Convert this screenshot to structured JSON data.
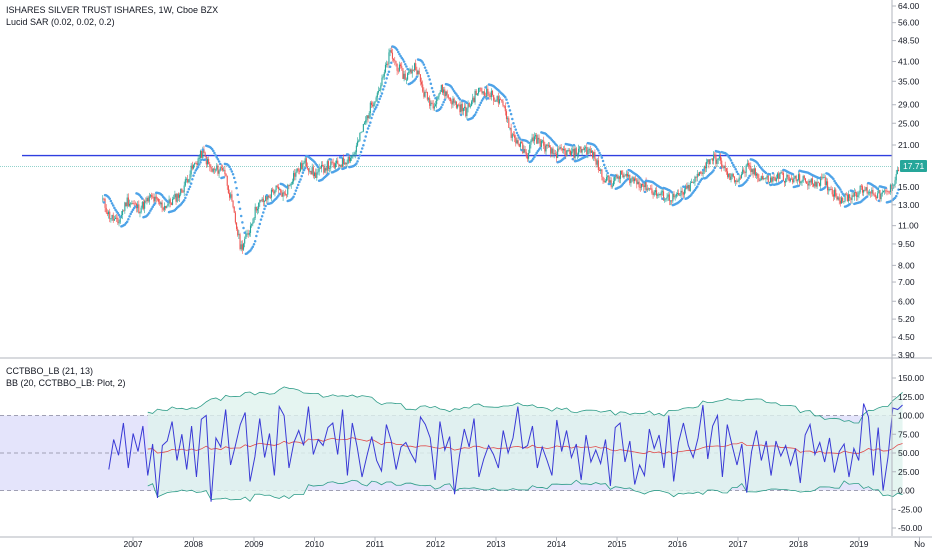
{
  "main_pane": {
    "title": "ISHARES SILVER TRUST ISHARES, 1W, Cboe BZX",
    "indicator": "Lucid SAR (0.02, 0.02, 0.2)",
    "last_price": "17.71"
  },
  "osc_pane": {
    "indicator1": "CCTBBO_LB (21, 13)",
    "indicator2": "BB (20, CCTBBO_LB: Plot, 2)"
  },
  "colors": {
    "up": "#26a69a",
    "down": "#ef5350",
    "sar": "#4ea3e8",
    "hline": "#2f3fe0",
    "last": "#26a69a",
    "osc": "#3a3ad6",
    "basis": "#e04b4b",
    "band": "#2e9c88",
    "band_fill": "#dff3ee",
    "zone_fill": "#e4e4fb",
    "dashed": "#a0a0b4"
  },
  "chart_data": [
    {
      "type": "candlestick",
      "title": "ISHARES SILVER TRUST ISHARES, 1W, Cboe BZX",
      "scale": "log",
      "y_ticks": [
        "64.00",
        "56.00",
        "48.50",
        "41.00",
        "35.00",
        "29.00",
        "25.00",
        "21.00",
        "17.71",
        "15.00",
        "13.00",
        "11.00",
        "9.50",
        "8.00",
        "7.00",
        "6.00",
        "5.20",
        "4.50",
        "3.90"
      ],
      "x_ticks": [
        "2007",
        "2008",
        "2009",
        "2010",
        "2011",
        "2012",
        "2013",
        "2014",
        "2015",
        "2016",
        "2017",
        "2018",
        "2019",
        "No"
      ],
      "horizontal_line": 19.3,
      "last_price": 17.71,
      "anchors": [
        [
          2006.5,
          13.5
        ],
        [
          2006.6,
          12.0
        ],
        [
          2006.75,
          11.2
        ],
        [
          2006.9,
          13.5
        ],
        [
          2007.1,
          12.6
        ],
        [
          2007.3,
          13.8
        ],
        [
          2007.5,
          12.8
        ],
        [
          2007.65,
          13.4
        ],
        [
          2007.8,
          14.5
        ],
        [
          2007.95,
          17.0
        ],
        [
          2008.15,
          19.8
        ],
        [
          2008.3,
          17.0
        ],
        [
          2008.5,
          17.5
        ],
        [
          2008.62,
          13.5
        ],
        [
          2008.78,
          9.2
        ],
        [
          2008.9,
          10.3
        ],
        [
          2009.05,
          13.0
        ],
        [
          2009.2,
          13.6
        ],
        [
          2009.35,
          14.8
        ],
        [
          2009.5,
          14.0
        ],
        [
          2009.65,
          16.5
        ],
        [
          2009.85,
          18.3
        ],
        [
          2010.0,
          16.5
        ],
        [
          2010.2,
          17.8
        ],
        [
          2010.35,
          17.8
        ],
        [
          2010.5,
          18.5
        ],
        [
          2010.65,
          19.5
        ],
        [
          2010.8,
          24.0
        ],
        [
          2010.95,
          29.5
        ],
        [
          2011.1,
          34.0
        ],
        [
          2011.25,
          44.0
        ],
        [
          2011.35,
          40.0
        ],
        [
          2011.5,
          36.0
        ],
        [
          2011.67,
          40.0
        ],
        [
          2011.8,
          32.0
        ],
        [
          2011.95,
          29.0
        ],
        [
          2012.1,
          33.0
        ],
        [
          2012.3,
          29.5
        ],
        [
          2012.5,
          27.5
        ],
        [
          2012.7,
          32.5
        ],
        [
          2012.85,
          32.0
        ],
        [
          2013.0,
          30.5
        ],
        [
          2013.15,
          28.0
        ],
        [
          2013.25,
          23.0
        ],
        [
          2013.4,
          21.0
        ],
        [
          2013.5,
          19.0
        ],
        [
          2013.62,
          22.5
        ],
        [
          2013.78,
          21.0
        ],
        [
          2013.95,
          19.5
        ],
        [
          2014.1,
          20.0
        ],
        [
          2014.25,
          19.5
        ],
        [
          2014.45,
          20.5
        ],
        [
          2014.6,
          19.5
        ],
        [
          2014.75,
          16.5
        ],
        [
          2014.9,
          15.5
        ],
        [
          2015.05,
          16.5
        ],
        [
          2015.25,
          16.0
        ],
        [
          2015.5,
          15.0
        ],
        [
          2015.65,
          14.2
        ],
        [
          2015.85,
          13.8
        ],
        [
          2016.0,
          13.8
        ],
        [
          2016.2,
          15.0
        ],
        [
          2016.35,
          16.5
        ],
        [
          2016.55,
          19.0
        ],
        [
          2016.7,
          18.5
        ],
        [
          2016.85,
          16.2
        ],
        [
          2017.0,
          16.0
        ],
        [
          2017.15,
          17.5
        ],
        [
          2017.35,
          16.3
        ],
        [
          2017.55,
          15.8
        ],
        [
          2017.7,
          16.5
        ],
        [
          2017.85,
          15.8
        ],
        [
          2018.0,
          16.0
        ],
        [
          2018.2,
          15.5
        ],
        [
          2018.4,
          15.8
        ],
        [
          2018.55,
          14.6
        ],
        [
          2018.7,
          13.6
        ],
        [
          2018.85,
          13.9
        ],
        [
          2019.0,
          14.6
        ],
        [
          2019.15,
          14.6
        ],
        [
          2019.35,
          14.0
        ],
        [
          2019.5,
          14.5
        ],
        [
          2019.6,
          16.2
        ],
        [
          2019.66,
          17.71
        ]
      ]
    },
    {
      "type": "line",
      "title": "CCTBBO_LB (21, 13)",
      "y_ticks": [
        "150.00",
        "125.00",
        "100.00",
        "75.00",
        "50.00",
        "25.00",
        "0.00",
        "-25.00",
        "-50.00"
      ],
      "bands": [
        0,
        50,
        100
      ],
      "series": [
        {
          "name": "CCTBBO_LB",
          "values": [
            28,
            68,
            47,
            90,
            30,
            76,
            52,
            86,
            20,
            62,
            -10,
            60,
            66,
            92,
            40,
            75,
            28,
            86,
            18,
            95,
            100,
            -15,
            70,
            58,
            108,
            34,
            60,
            88,
            104,
            12,
            45,
            96,
            44,
            76,
            20,
            112,
            100,
            30,
            64,
            80,
            60,
            112,
            48,
            68,
            60,
            84,
            90,
            48,
            108,
            20,
            90,
            58,
            18,
            46,
            72,
            40,
            26,
            88,
            66,
            28,
            58,
            64,
            50,
            38,
            98,
            88,
            70,
            14,
            92,
            54,
            72,
            -5,
            46,
            82,
            58,
            96,
            18,
            42,
            60,
            48,
            30,
            80,
            50,
            70,
            112,
            56,
            60,
            86,
            30,
            58,
            40,
            20,
            94,
            52,
            80,
            44,
            62,
            14,
            74,
            38,
            54,
            36,
            68,
            6,
            84,
            90,
            38,
            66,
            8,
            34,
            20,
            82,
            56,
            74,
            30,
            100,
            12,
            64,
            90,
            60,
            44,
            70,
            114,
            42,
            86,
            100,
            18,
            88,
            60,
            34,
            62,
            -3,
            52,
            80,
            40,
            66,
            20,
            66,
            46,
            60,
            34,
            56,
            10,
            74,
            88,
            48,
            64,
            38,
            70,
            24,
            52,
            62,
            18,
            56,
            40,
            116,
            98,
            20,
            84,
            0,
            44,
            110,
            108,
            114
          ]
        }
      ],
      "bollinger": {
        "name": "BB (20, CCTBBO_LB: Plot, 2)",
        "length": 20,
        "mult": 2
      }
    }
  ]
}
